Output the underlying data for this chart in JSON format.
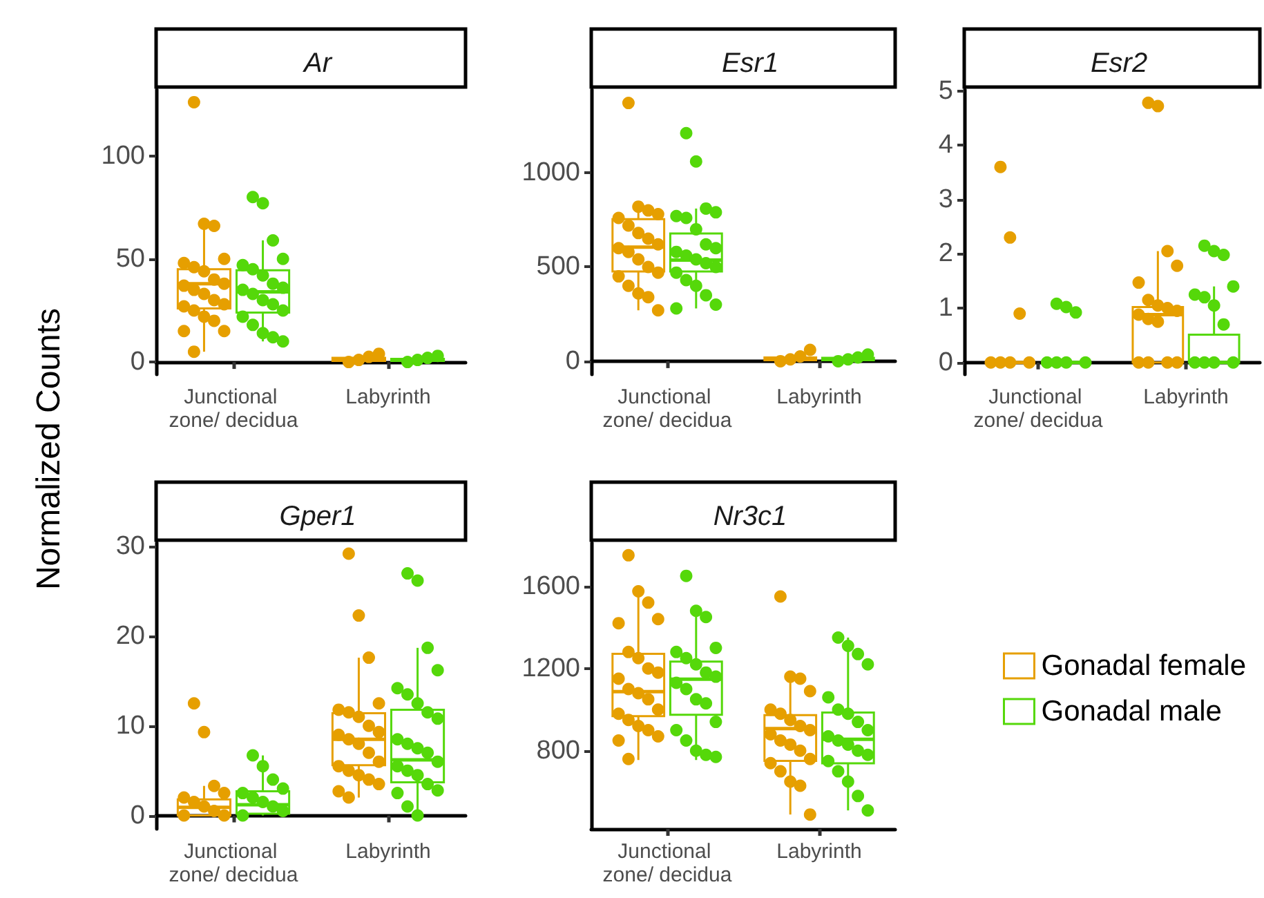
{
  "chart_data": [
    {
      "type": "box",
      "title": "Ar",
      "ylabel": "Normalized Counts",
      "categories": [
        "Junctional zone/ decidua",
        "Labyrinth"
      ],
      "ylim": [
        -6,
        132
      ],
      "yticks": [
        0,
        50,
        100
      ],
      "series": [
        {
          "color": "#e69f00",
          "boxes": [
            {
              "low": 5,
              "q1": 26,
              "median": 38,
              "q3": 45,
              "high": 67
            },
            {
              "low": 0,
              "q1": 0.5,
              "median": 1,
              "q3": 2,
              "high": 4
            }
          ]
        },
        {
          "color": "#55d80a",
          "boxes": [
            {
              "low": 10,
              "q1": 24,
              "median": 34,
              "q3": 44.5,
              "high": 59
            },
            {
              "low": 0,
              "q1": 0.5,
              "median": 1,
              "q3": 1.5,
              "high": 3
            }
          ]
        },
        {
          "type": "scatter",
          "color": "#e69f00",
          "x": [
            "Junctional zone/ decidua",
            "Junctional zone/ decidua",
            "Junctional zone/ decidua",
            "Junctional zone/ decidua",
            "Junctional zone/ decidua",
            "Junctional zone/ decidua",
            "Junctional zone/ decidua",
            "Junctional zone/ decidua",
            "Junctional zone/ decidua",
            "Junctional zone/ decidua",
            "Junctional zone/ decidua",
            "Junctional zone/ decidua",
            "Junctional zone/ decidua",
            "Junctional zone/ decidua",
            "Junctional zone/ decidua",
            "Junctional zone/ decidua",
            "Junctional zone/ decidua",
            "Junctional zone/ decidua",
            "Junctional zone/ decidua",
            "Junctional zone/ decidua",
            "Junctional zone/ decidua",
            "Labyrinth",
            "Labyrinth",
            "Labyrinth",
            "Labyrinth"
          ],
          "values": [
            126,
            67,
            66,
            50,
            48,
            46,
            44,
            40,
            38,
            37,
            35,
            33,
            30,
            28,
            27,
            25,
            22,
            20,
            15,
            15,
            5,
            0,
            1,
            2.5,
            4
          ]
        },
        {
          "type": "scatter",
          "color": "#55d80a",
          "x": [
            "Junctional zone/ decidua",
            "Junctional zone/ decidua",
            "Junctional zone/ decidua",
            "Junctional zone/ decidua",
            "Junctional zone/ decidua",
            "Junctional zone/ decidua",
            "Junctional zone/ decidua",
            "Junctional zone/ decidua",
            "Junctional zone/ decidua",
            "Junctional zone/ decidua",
            "Junctional zone/ decidua",
            "Junctional zone/ decidua",
            "Junctional zone/ decidua",
            "Junctional zone/ decidua",
            "Junctional zone/ decidua",
            "Junctional zone/ decidua",
            "Junctional zone/ decidua",
            "Junctional zone/ decidua",
            "Junctional zone/ decidua",
            "Labyrinth",
            "Labyrinth",
            "Labyrinth",
            "Labyrinth"
          ],
          "values": [
            80,
            77,
            59,
            50,
            47,
            45,
            42,
            38,
            36,
            35,
            33,
            30,
            28,
            25,
            22,
            18,
            14,
            12,
            10,
            0,
            1,
            2,
            3
          ]
        }
      ]
    },
    {
      "type": "box",
      "title": "Esr1",
      "categories": [
        "Junctional zone/ decidua",
        "Labyrinth"
      ],
      "ylim": [
        -70,
        1440
      ],
      "yticks": [
        0,
        500,
        1000
      ],
      "series": [
        {
          "color": "#e69f00",
          "boxes": [
            {
              "low": 270,
              "q1": 476,
              "median": 605,
              "q3": 754,
              "high": 820
            },
            {
              "low": 0,
              "q1": 5,
              "median": 10,
              "q3": 20,
              "high": 40
            }
          ]
        },
        {
          "color": "#55d80a",
          "boxes": [
            {
              "low": 280,
              "q1": 476,
              "median": 537,
              "q3": 678,
              "high": 810
            },
            {
              "low": 0,
              "q1": 5,
              "median": 10,
              "q3": 18,
              "high": 35
            }
          ]
        },
        {
          "type": "scatter",
          "color": "#e69f00",
          "x": [
            "Junctional zone/ decidua",
            "Junctional zone/ decidua",
            "Junctional zone/ decidua",
            "Junctional zone/ decidua",
            "Junctional zone/ decidua",
            "Junctional zone/ decidua",
            "Junctional zone/ decidua",
            "Junctional zone/ decidua",
            "Junctional zone/ decidua",
            "Junctional zone/ decidua",
            "Junctional zone/ decidua",
            "Junctional zone/ decidua",
            "Junctional zone/ decidua",
            "Junctional zone/ decidua",
            "Junctional zone/ decidua",
            "Junctional zone/ decidua",
            "Junctional zone/ decidua",
            "Junctional zone/ decidua",
            "Junctional zone/ decidua",
            "Labyrinth",
            "Labyrinth",
            "Labyrinth",
            "Labyrinth"
          ],
          "values": [
            1370,
            820,
            800,
            780,
            760,
            720,
            680,
            650,
            620,
            600,
            580,
            540,
            500,
            470,
            450,
            400,
            360,
            340,
            270,
            0,
            10,
            25,
            60
          ]
        },
        {
          "type": "scatter",
          "color": "#55d80a",
          "x": [
            "Junctional zone/ decidua",
            "Junctional zone/ decidua",
            "Junctional zone/ decidua",
            "Junctional zone/ decidua",
            "Junctional zone/ decidua",
            "Junctional zone/ decidua",
            "Junctional zone/ decidua",
            "Junctional zone/ decidua",
            "Junctional zone/ decidua",
            "Junctional zone/ decidua",
            "Junctional zone/ decidua",
            "Junctional zone/ decidua",
            "Junctional zone/ decidua",
            "Junctional zone/ decidua",
            "Junctional zone/ decidua",
            "Junctional zone/ decidua",
            "Junctional zone/ decidua",
            "Junctional zone/ decidua",
            "Junctional zone/ decidua",
            "Junctional zone/ decidua",
            "Labyrinth",
            "Labyrinth",
            "Labyrinth",
            "Labyrinth"
          ],
          "values": [
            1210,
            1060,
            810,
            790,
            770,
            760,
            700,
            620,
            600,
            580,
            560,
            540,
            520,
            500,
            470,
            430,
            400,
            350,
            300,
            280,
            0,
            10,
            20,
            35
          ]
        }
      ]
    },
    {
      "type": "box",
      "title": "Esr2",
      "categories": [
        "Junctional zone/ decidua",
        "Labyrinth"
      ],
      "ylim": [
        -0.22,
        5.02
      ],
      "yticks": [
        0,
        1,
        2,
        3,
        4,
        5
      ],
      "series": [
        {
          "color": "#e69f00",
          "boxes": [
            {
              "low": 0,
              "q1": 0,
              "median": 0,
              "q3": 0,
              "high": 0
            },
            {
              "low": 0,
              "q1": 0,
              "median": 0.88,
              "q3": 1.02,
              "high": 2.05
            }
          ]
        },
        {
          "color": "#55d80a",
          "boxes": [
            {
              "low": 0,
              "q1": 0,
              "median": 0,
              "q3": 0,
              "high": 0
            },
            {
              "low": 0,
              "q1": 0,
              "median": 0,
              "q3": 0.51,
              "high": 1.4
            }
          ]
        },
        {
          "type": "scatter",
          "color": "#e69f00",
          "x": [
            "Junctional zone/ decidua",
            "Junctional zone/ decidua",
            "Junctional zone/ decidua",
            "Junctional zone/ decidua",
            "Junctional zone/ decidua",
            "Junctional zone/ decidua",
            "Junctional zone/ decidua",
            "Labyrinth",
            "Labyrinth",
            "Labyrinth",
            "Labyrinth",
            "Labyrinth",
            "Labyrinth",
            "Labyrinth",
            "Labyrinth",
            "Labyrinth",
            "Labyrinth",
            "Labyrinth",
            "Labyrinth",
            "Labyrinth",
            "Labyrinth",
            "Labyrinth",
            "Labyrinth"
          ],
          "values": [
            3.6,
            2.3,
            0.9,
            0,
            0,
            0,
            0,
            4.78,
            4.72,
            2.05,
            1.78,
            1.47,
            1.15,
            1.05,
            1,
            0.95,
            0.88,
            0.8,
            0.75,
            0,
            0,
            0,
            0
          ]
        },
        {
          "type": "scatter",
          "color": "#55d80a",
          "x": [
            "Junctional zone/ decidua",
            "Junctional zone/ decidua",
            "Junctional zone/ decidua",
            "Junctional zone/ decidua",
            "Junctional zone/ decidua",
            "Junctional zone/ decidua",
            "Junctional zone/ decidua",
            "Labyrinth",
            "Labyrinth",
            "Labyrinth",
            "Labyrinth",
            "Labyrinth",
            "Labyrinth",
            "Labyrinth",
            "Labyrinth",
            "Labyrinth",
            "Labyrinth",
            "Labyrinth",
            "Labyrinth"
          ],
          "values": [
            1.08,
            1.02,
            0.92,
            0,
            0,
            0,
            0,
            2.15,
            2.05,
            1.98,
            1.4,
            1.25,
            1.2,
            1.05,
            0.7,
            0,
            0,
            0,
            0
          ]
        }
      ]
    },
    {
      "type": "box",
      "title": "Gper1",
      "categories": [
        "Junctional zone/ decidua",
        "Labyrinth"
      ],
      "ylim": [
        -1.5,
        30.4
      ],
      "yticks": [
        0,
        10,
        20,
        30
      ],
      "series": [
        {
          "color": "#e69f00",
          "boxes": [
            {
              "low": 0,
              "q1": 0,
              "median": 0.9,
              "q3": 1.8,
              "high": 3.3
            },
            {
              "low": 2,
              "q1": 5.6,
              "median": 8.5,
              "q3": 11.4,
              "high": 17.6
            }
          ]
        },
        {
          "color": "#55d80a",
          "boxes": [
            {
              "low": 0,
              "q1": 0.2,
              "median": 1.2,
              "q3": 2.7,
              "high": 6.7
            },
            {
              "low": 0,
              "q1": 3.7,
              "median": 6.2,
              "q3": 11.8,
              "high": 18.7
            }
          ]
        },
        {
          "type": "scatter",
          "color": "#e69f00",
          "x": [
            "Junctional zone/ decidua",
            "Junctional zone/ decidua",
            "Junctional zone/ decidua",
            "Junctional zone/ decidua",
            "Junctional zone/ decidua",
            "Junctional zone/ decidua",
            "Junctional zone/ decidua",
            "Junctional zone/ decidua",
            "Junctional zone/ decidua",
            "Junctional zone/ decidua",
            "Labyrinth",
            "Labyrinth",
            "Labyrinth",
            "Labyrinth",
            "Labyrinth",
            "Labyrinth",
            "Labyrinth",
            "Labyrinth",
            "Labyrinth",
            "Labyrinth",
            "Labyrinth",
            "Labyrinth",
            "Labyrinth",
            "Labyrinth",
            "Labyrinth",
            "Labyrinth",
            "Labyrinth",
            "Labyrinth",
            "Labyrinth",
            "Labyrinth",
            "Labyrinth"
          ],
          "values": [
            12.5,
            9.3,
            3.3,
            2.5,
            2,
            1.5,
            1,
            0.5,
            0,
            0,
            29.2,
            22.3,
            17.6,
            12.5,
            11.8,
            11.5,
            11,
            10,
            9.3,
            9,
            8.5,
            8,
            7,
            6,
            5.5,
            5,
            4.5,
            4,
            3.5,
            2.7,
            2
          ]
        },
        {
          "type": "scatter",
          "color": "#55d80a",
          "x": [
            "Junctional zone/ decidua",
            "Junctional zone/ decidua",
            "Junctional zone/ decidua",
            "Junctional zone/ decidua",
            "Junctional zone/ decidua",
            "Junctional zone/ decidua",
            "Junctional zone/ decidua",
            "Junctional zone/ decidua",
            "Junctional zone/ decidua",
            "Junctional zone/ decidua",
            "Labyrinth",
            "Labyrinth",
            "Labyrinth",
            "Labyrinth",
            "Labyrinth",
            "Labyrinth",
            "Labyrinth",
            "Labyrinth",
            "Labyrinth",
            "Labyrinth",
            "Labyrinth",
            "Labyrinth",
            "Labyrinth",
            "Labyrinth",
            "Labyrinth",
            "Labyrinth",
            "Labyrinth",
            "Labyrinth",
            "Labyrinth",
            "Labyrinth",
            "Labyrinth",
            "Labyrinth"
          ],
          "values": [
            6.7,
            5.5,
            4,
            3,
            2.5,
            2,
            1.5,
            1,
            0.5,
            0,
            27,
            26.2,
            18.7,
            16.2,
            14.2,
            13.5,
            12.5,
            11.5,
            10.8,
            8.5,
            8,
            7.5,
            7,
            6,
            5.5,
            5,
            4.5,
            3.5,
            2.8,
            2.5,
            1,
            0
          ]
        }
      ]
    },
    {
      "type": "box",
      "title": "Nr3c1",
      "categories": [
        "Junctional zone/ decidua",
        "Labyrinth"
      ],
      "ylim": [
        420,
        1810
      ],
      "yticks": [
        800,
        1200,
        1600
      ],
      "legend": "right",
      "series": [
        {
          "name": "Gonadal female",
          "color": "#e69f00",
          "boxes": [
            {
              "low": 755,
              "q1": 968,
              "median": 1087,
              "q3": 1271,
              "high": 1575
            },
            {
              "low": 490,
              "q1": 751,
              "median": 908,
              "q3": 973,
              "high": 1160
            }
          ]
        },
        {
          "name": "Gonadal male",
          "color": "#55d80a",
          "boxes": [
            {
              "low": 755,
              "q1": 975,
              "median": 1148,
              "q3": 1233,
              "high": 1480
            },
            {
              "low": 510,
              "q1": 739,
              "median": 856,
              "q3": 986,
              "high": 1350
            }
          ]
        },
        {
          "type": "scatter",
          "color": "#e69f00",
          "x": [
            "Junctional zone/ decidua",
            "Junctional zone/ decidua",
            "Junctional zone/ decidua",
            "Junctional zone/ decidua",
            "Junctional zone/ decidua",
            "Junctional zone/ decidua",
            "Junctional zone/ decidua",
            "Junctional zone/ decidua",
            "Junctional zone/ decidua",
            "Junctional zone/ decidua",
            "Junctional zone/ decidua",
            "Junctional zone/ decidua",
            "Junctional zone/ decidua",
            "Junctional zone/ decidua",
            "Junctional zone/ decidua",
            "Junctional zone/ decidua",
            "Junctional zone/ decidua",
            "Junctional zone/ decidua",
            "Junctional zone/ decidua",
            "Junctional zone/ decidua",
            "Junctional zone/ decidua",
            "Labyrinth",
            "Labyrinth",
            "Labyrinth",
            "Labyrinth",
            "Labyrinth",
            "Labyrinth",
            "Labyrinth",
            "Labyrinth",
            "Labyrinth",
            "Labyrinth",
            "Labyrinth",
            "Labyrinth",
            "Labyrinth",
            "Labyrinth",
            "Labyrinth",
            "Labyrinth",
            "Labyrinth",
            "Labyrinth",
            "Labyrinth"
          ],
          "values": [
            1750,
            1575,
            1520,
            1440,
            1420,
            1280,
            1250,
            1200,
            1180,
            1150,
            1100,
            1080,
            1050,
            1000,
            980,
            950,
            920,
            900,
            870,
            850,
            760,
            1550,
            1160,
            1150,
            1090,
            1000,
            980,
            950,
            920,
            900,
            880,
            850,
            830,
            800,
            760,
            740,
            700,
            650,
            630,
            490
          ]
        },
        {
          "type": "scatter",
          "color": "#55d80a",
          "x": [
            "Junctional zone/ decidua",
            "Junctional zone/ decidua",
            "Junctional zone/ decidua",
            "Junctional zone/ decidua",
            "Junctional zone/ decidua",
            "Junctional zone/ decidua",
            "Junctional zone/ decidua",
            "Junctional zone/ decidua",
            "Junctional zone/ decidua",
            "Junctional zone/ decidua",
            "Junctional zone/ decidua",
            "Junctional zone/ decidua",
            "Junctional zone/ decidua",
            "Junctional zone/ decidua",
            "Junctional zone/ decidua",
            "Junctional zone/ decidua",
            "Junctional zone/ decidua",
            "Junctional zone/ decidua",
            "Junctional zone/ decidua",
            "Labyrinth",
            "Labyrinth",
            "Labyrinth",
            "Labyrinth",
            "Labyrinth",
            "Labyrinth",
            "Labyrinth",
            "Labyrinth",
            "Labyrinth",
            "Labyrinth",
            "Labyrinth",
            "Labyrinth",
            "Labyrinth",
            "Labyrinth",
            "Labyrinth",
            "Labyrinth",
            "Labyrinth",
            "Labyrinth",
            "Labyrinth"
          ],
          "values": [
            1650,
            1480,
            1450,
            1300,
            1280,
            1250,
            1220,
            1180,
            1160,
            1130,
            1100,
            1050,
            1030,
            940,
            900,
            850,
            800,
            780,
            770,
            1350,
            1310,
            1270,
            1220,
            1060,
            1000,
            980,
            940,
            900,
            870,
            850,
            830,
            800,
            780,
            750,
            700,
            650,
            580,
            510
          ]
        }
      ]
    }
  ]
}
